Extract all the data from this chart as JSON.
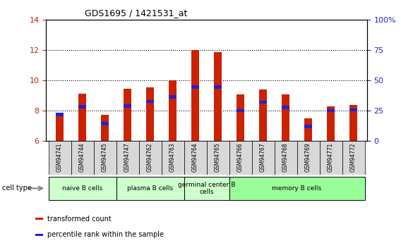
{
  "title": "GDS1695 / 1421531_at",
  "samples": [
    "GSM94741",
    "GSM94744",
    "GSM94745",
    "GSM94747",
    "GSM94762",
    "GSM94763",
    "GSM94764",
    "GSM94765",
    "GSM94766",
    "GSM94767",
    "GSM94768",
    "GSM94769",
    "GSM94771",
    "GSM94772"
  ],
  "transformed_count": [
    7.8,
    9.1,
    7.7,
    9.45,
    9.55,
    10.0,
    12.0,
    11.85,
    9.05,
    9.4,
    9.05,
    7.5,
    8.3,
    8.35
  ],
  "percentile_rank_left": [
    7.73,
    8.25,
    7.15,
    8.3,
    8.6,
    8.9,
    9.55,
    9.55,
    8.0,
    8.55,
    8.2,
    6.95,
    8.0,
    8.05
  ],
  "bar_color": "#cc2200",
  "pct_color": "#2222cc",
  "ylim_left": [
    6,
    14
  ],
  "ylim_right": [
    0,
    100
  ],
  "yticks_left": [
    6,
    8,
    10,
    12,
    14
  ],
  "yticks_right": [
    0,
    25,
    50,
    75,
    100
  ],
  "ylabel_left_color": "#cc2200",
  "ylabel_right_color": "#2222cc",
  "cell_groups": [
    {
      "label": "naive B cells",
      "start": 0,
      "end": 2,
      "color": "#ccffcc"
    },
    {
      "label": "plasma B cells",
      "start": 3,
      "end": 5,
      "color": "#ccffcc"
    },
    {
      "label": "germinal center B\ncells",
      "start": 6,
      "end": 7,
      "color": "#ccffcc"
    },
    {
      "label": "memory B cells",
      "start": 8,
      "end": 13,
      "color": "#99ff99"
    }
  ],
  "cell_type_label": "cell type",
  "legend_items": [
    {
      "label": "transformed count",
      "color": "#cc2200"
    },
    {
      "label": "percentile rank within the sample",
      "color": "#2222cc"
    }
  ],
  "background_color": "#ffffff",
  "bar_base": 6,
  "bar_width": 0.35
}
